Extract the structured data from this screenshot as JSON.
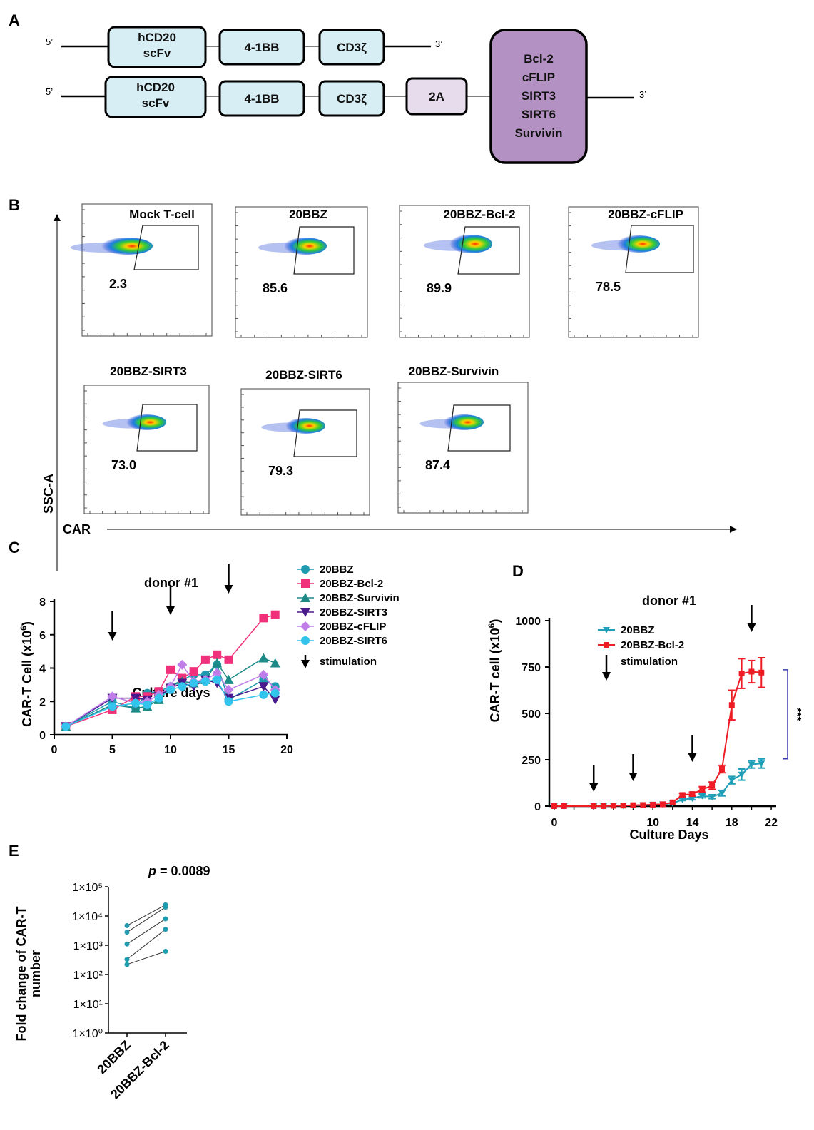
{
  "panel_letters": {
    "a": "A",
    "b": "B",
    "c": "C",
    "d": "D",
    "e": "E"
  },
  "panelA": {
    "five_prime": "5’",
    "three_prime": "3’",
    "row1": [
      "hCD20\nscFv",
      "4-1BB",
      "CD3ζ"
    ],
    "row2": [
      "hCD20\nscFv",
      "4-1BB",
      "CD3ζ",
      "2A"
    ],
    "big_box": [
      "Bcl-2",
      "cFLIP",
      "SIRT3",
      "SIRT6",
      "Survivin"
    ]
  },
  "panelB": {
    "ylabel": "SSC-A",
    "xlabel": "CAR",
    "plots": [
      {
        "title": "Mock T-cell",
        "pct": "2.3"
      },
      {
        "title": "20BBZ",
        "pct": "85.6"
      },
      {
        "title": "20BBZ-Bcl-2",
        "pct": "89.9"
      },
      {
        "title": "20BBZ-cFLIP",
        "pct": "78.5"
      },
      {
        "title": "20BBZ-SIRT3",
        "pct": "73.0"
      },
      {
        "title": "20BBZ-SIRT6",
        "pct": "79.3"
      },
      {
        "title": "20BBZ-Survivin",
        "pct": "87.4"
      }
    ]
  },
  "chart_data": [
    {
      "id": "C",
      "type": "line",
      "title": "donor #1",
      "xlabel": "Culture days",
      "ylabel": "CAR-T Cell (x10⁶)",
      "xlim": [
        0,
        20
      ],
      "ylim": [
        0,
        8
      ],
      "xticks": [
        0,
        5,
        10,
        15,
        20
      ],
      "yticks": [
        0,
        2,
        4,
        6,
        8
      ],
      "x": [
        1,
        5,
        7,
        8,
        9,
        10,
        11,
        12,
        13,
        14,
        15,
        18,
        19
      ],
      "series": [
        {
          "name": "20BBZ",
          "color": "#1f9bb0",
          "marker": "circle",
          "values": [
            0.5,
            2.0,
            1.6,
            2.5,
            2.6,
            2.9,
            3.3,
            3.6,
            3.6,
            4.2,
            2.1,
            3.3,
            2.9
          ]
        },
        {
          "name": "20BBZ-Bcl-2",
          "color": "#f0307a",
          "marker": "square",
          "values": [
            0.5,
            1.5,
            2.3,
            2.3,
            2.6,
            3.9,
            3.4,
            3.8,
            4.5,
            4.8,
            4.5,
            7.0,
            7.2
          ]
        },
        {
          "name": "20BBZ-Survivin",
          "color": "#1d8a87",
          "marker": "triangle",
          "values": [
            0.5,
            1.8,
            1.6,
            1.7,
            2.1,
            2.9,
            3.2,
            3.1,
            3.3,
            4.3,
            3.3,
            4.6,
            4.3
          ]
        },
        {
          "name": "20BBZ-SIRT3",
          "color": "#4a1a8c",
          "marker": "tri-down",
          "values": [
            0.5,
            2.2,
            2.2,
            2.1,
            2.3,
            2.8,
            3.1,
            2.9,
            3.3,
            3.1,
            2.2,
            2.9,
            2.1
          ]
        },
        {
          "name": "20BBZ-cFLIP",
          "color": "#c07ee8",
          "marker": "diamond",
          "values": [
            0.5,
            2.3,
            1.9,
            2.0,
            2.4,
            2.9,
            4.2,
            3.2,
            3.3,
            3.7,
            2.7,
            3.6,
            2.7
          ]
        },
        {
          "name": "20BBZ-SIRT6",
          "color": "#32c4ec",
          "marker": "circle",
          "values": [
            0.5,
            1.7,
            1.9,
            1.8,
            2.2,
            2.7,
            2.9,
            3.1,
            3.2,
            3.3,
            2.0,
            2.4,
            2.5
          ]
        }
      ],
      "legend_extra": "stimulation",
      "stimulation_days": [
        5,
        10,
        15
      ]
    },
    {
      "id": "D",
      "type": "line",
      "title": "donor #1",
      "xlabel": "Culture Days",
      "ylabel": "CAR-T cell  (x10⁶)",
      "xlim": [
        -0.5,
        22.5
      ],
      "ylim": [
        0,
        1000
      ],
      "xticks": [
        0,
        10,
        14,
        18,
        22
      ],
      "yticks": [
        0,
        250,
        500,
        750,
        1000
      ],
      "series": [
        {
          "name": "20BBZ",
          "color": "#1fa0b8",
          "marker": "tri-down",
          "x": [
            0,
            1,
            4,
            5,
            6,
            7,
            8,
            9,
            10,
            11,
            12,
            13,
            14,
            15,
            16,
            17,
            18,
            19,
            20,
            21
          ],
          "values": [
            0,
            0,
            0,
            0,
            2,
            3,
            4,
            5,
            8,
            10,
            15,
            35,
            42,
            55,
            50,
            70,
            140,
            170,
            225,
            230
          ],
          "err": [
            0,
            0,
            0,
            0,
            0,
            0,
            0,
            0,
            0,
            0,
            0,
            5,
            8,
            10,
            10,
            15,
            20,
            30,
            20,
            25
          ]
        },
        {
          "name": "20BBZ-Bcl-2",
          "color": "#ee1c24",
          "marker": "square",
          "x": [
            0,
            1,
            4,
            5,
            6,
            7,
            8,
            9,
            10,
            11,
            12,
            13,
            14,
            15,
            16,
            17,
            18,
            19,
            20,
            21
          ],
          "values": [
            0,
            0,
            0,
            0,
            2,
            3,
            5,
            6,
            8,
            10,
            20,
            60,
            65,
            90,
            110,
            200,
            545,
            715,
            725,
            720
          ],
          "err": [
            0,
            0,
            0,
            0,
            0,
            0,
            0,
            0,
            0,
            0,
            0,
            8,
            10,
            15,
            20,
            20,
            80,
            80,
            60,
            80
          ]
        }
      ],
      "legend_extra": "stimulation",
      "stimulation_days": [
        4,
        8,
        14,
        20
      ],
      "significance": "***"
    },
    {
      "id": "E",
      "type": "scatter",
      "title": "p = 0.0089",
      "ylabel": "Fold change of CAR-T\nnumber",
      "categories": [
        "20BBZ",
        "20BBZ-Bcl-2"
      ],
      "yscale": "log",
      "yticks": [
        "1×10⁰",
        "1×10¹",
        "1×10²",
        "1×10³",
        "1×10⁴",
        "1×10⁵"
      ],
      "pairs": [
        [
          220,
          620
        ],
        [
          330,
          3500
        ],
        [
          1100,
          8000
        ],
        [
          2800,
          20000
        ],
        [
          4700,
          24000
        ]
      ],
      "color": "#1f9bb0"
    }
  ]
}
